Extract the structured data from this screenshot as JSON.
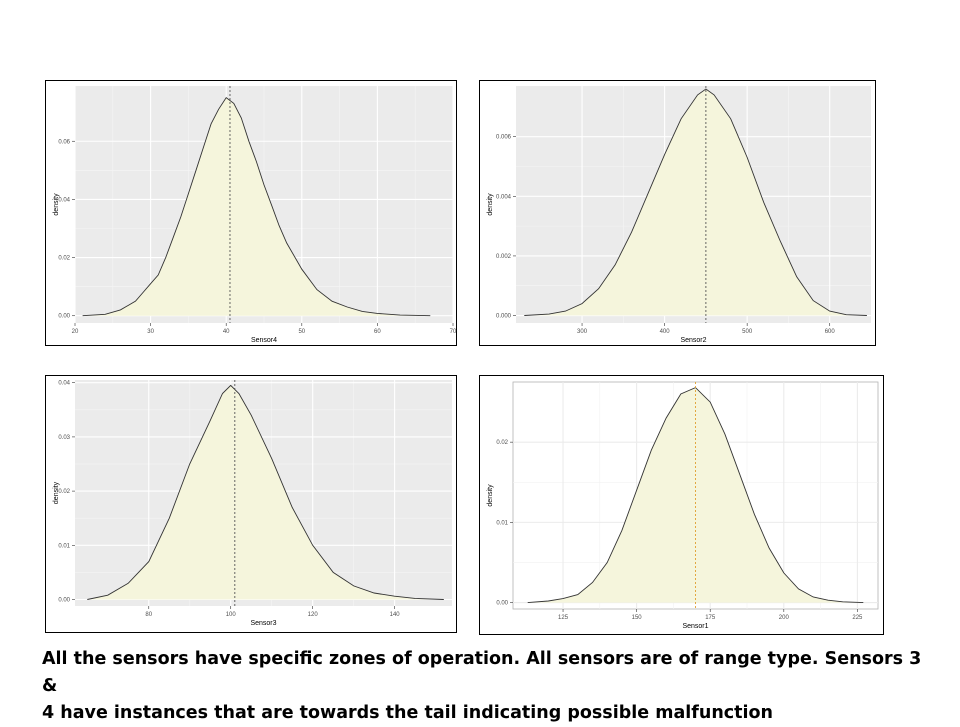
{
  "caption": {
    "line1": "All the sensors have specific zones of operation. All sensors are of range type. Sensors 3 &",
    "line2": "4 have instances that are towards the tail indicating possible malfunction"
  },
  "chart_data": [
    {
      "type": "area",
      "theme": "gray",
      "xlabel": "Sensor4",
      "ylabel": "density",
      "xlim": [
        20,
        70
      ],
      "ylim": [
        -0.0025,
        0.079
      ],
      "xticks": [
        20,
        30,
        40,
        50,
        60,
        70
      ],
      "yticks": [
        0.0,
        0.02,
        0.04,
        0.06
      ],
      "ytick_labels": [
        "0.00",
        "0.02",
        "0.04",
        "0.06"
      ],
      "vline": 40.5,
      "vline_color": "#555555",
      "fill": "#f5f5dc",
      "x": [
        21,
        24,
        26,
        28,
        29,
        30,
        31,
        32,
        33,
        34,
        35,
        36,
        37,
        38,
        39,
        40,
        41,
        42,
        43,
        44,
        45,
        46,
        47,
        48,
        50,
        52,
        54,
        56,
        58,
        60,
        63,
        67
      ],
      "y": [
        0.0,
        0.0005,
        0.002,
        0.005,
        0.008,
        0.011,
        0.014,
        0.02,
        0.027,
        0.034,
        0.042,
        0.05,
        0.058,
        0.066,
        0.071,
        0.075,
        0.073,
        0.068,
        0.06,
        0.053,
        0.045,
        0.038,
        0.031,
        0.025,
        0.016,
        0.009,
        0.005,
        0.003,
        0.0015,
        0.0008,
        0.0002,
        0.0
      ]
    },
    {
      "type": "area",
      "theme": "gray",
      "xlabel": "Sensor2",
      "ylabel": "density",
      "xlim": [
        220,
        650
      ],
      "ylim": [
        -0.00025,
        0.0077
      ],
      "xticks": [
        300,
        400,
        500,
        600
      ],
      "yticks": [
        0.0,
        0.002,
        0.004,
        0.006
      ],
      "ytick_labels": [
        "0.000",
        "0.002",
        "0.004",
        "0.006"
      ],
      "vline": 450,
      "vline_color": "#555555",
      "fill": "#f5f5dc",
      "x": [
        230,
        260,
        280,
        300,
        320,
        340,
        360,
        380,
        400,
        420,
        440,
        450,
        460,
        480,
        500,
        520,
        540,
        560,
        580,
        600,
        620,
        645
      ],
      "y": [
        0.0,
        5e-05,
        0.00015,
        0.0004,
        0.0009,
        0.0017,
        0.0028,
        0.0041,
        0.0054,
        0.0066,
        0.0074,
        0.0076,
        0.0074,
        0.0066,
        0.0053,
        0.0038,
        0.0025,
        0.0013,
        0.0005,
        0.00015,
        3e-05,
        0.0
      ]
    },
    {
      "type": "area",
      "theme": "gray",
      "xlabel": "Sensor3",
      "ylabel": "density",
      "xlim": [
        62,
        154
      ],
      "ylim": [
        -0.0012,
        0.0405
      ],
      "xticks": [
        80,
        100,
        120,
        140
      ],
      "yticks": [
        0.0,
        0.01,
        0.02,
        0.03,
        0.04
      ],
      "ytick_labels": [
        "0.00",
        "0.01",
        "0.02",
        "0.03",
        "0.04"
      ],
      "vline": 101,
      "vline_color": "#555555",
      "fill": "#f5f5dc",
      "x": [
        65,
        70,
        75,
        80,
        85,
        90,
        95,
        98,
        100,
        102,
        105,
        110,
        115,
        120,
        125,
        130,
        135,
        140,
        145,
        152
      ],
      "y": [
        0.0,
        0.0008,
        0.003,
        0.007,
        0.015,
        0.025,
        0.033,
        0.038,
        0.0395,
        0.038,
        0.034,
        0.026,
        0.017,
        0.01,
        0.005,
        0.0025,
        0.0012,
        0.0006,
        0.0002,
        0.0
      ]
    },
    {
      "type": "area",
      "theme": "white",
      "xlabel": "Sensor1",
      "ylabel": "density",
      "xlim": [
        108,
        232
      ],
      "ylim": [
        -0.0008,
        0.0275
      ],
      "xticks": [
        125,
        150,
        175,
        200,
        225
      ],
      "yticks": [
        0.0,
        0.01,
        0.02
      ],
      "ytick_labels": [
        "0.00",
        "0.01",
        "0.02"
      ],
      "vline": 170,
      "vline_color": "#e0a030",
      "fill": "#f5f5dc",
      "x": [
        113,
        120,
        125,
        130,
        135,
        140,
        145,
        150,
        155,
        160,
        165,
        170,
        175,
        180,
        185,
        190,
        195,
        200,
        205,
        210,
        215,
        220,
        227
      ],
      "y": [
        0.0,
        0.0002,
        0.0005,
        0.001,
        0.0025,
        0.005,
        0.009,
        0.014,
        0.019,
        0.023,
        0.026,
        0.0268,
        0.025,
        0.021,
        0.016,
        0.011,
        0.0068,
        0.0037,
        0.0017,
        0.0007,
        0.0003,
        0.0001,
        0.0
      ]
    }
  ]
}
